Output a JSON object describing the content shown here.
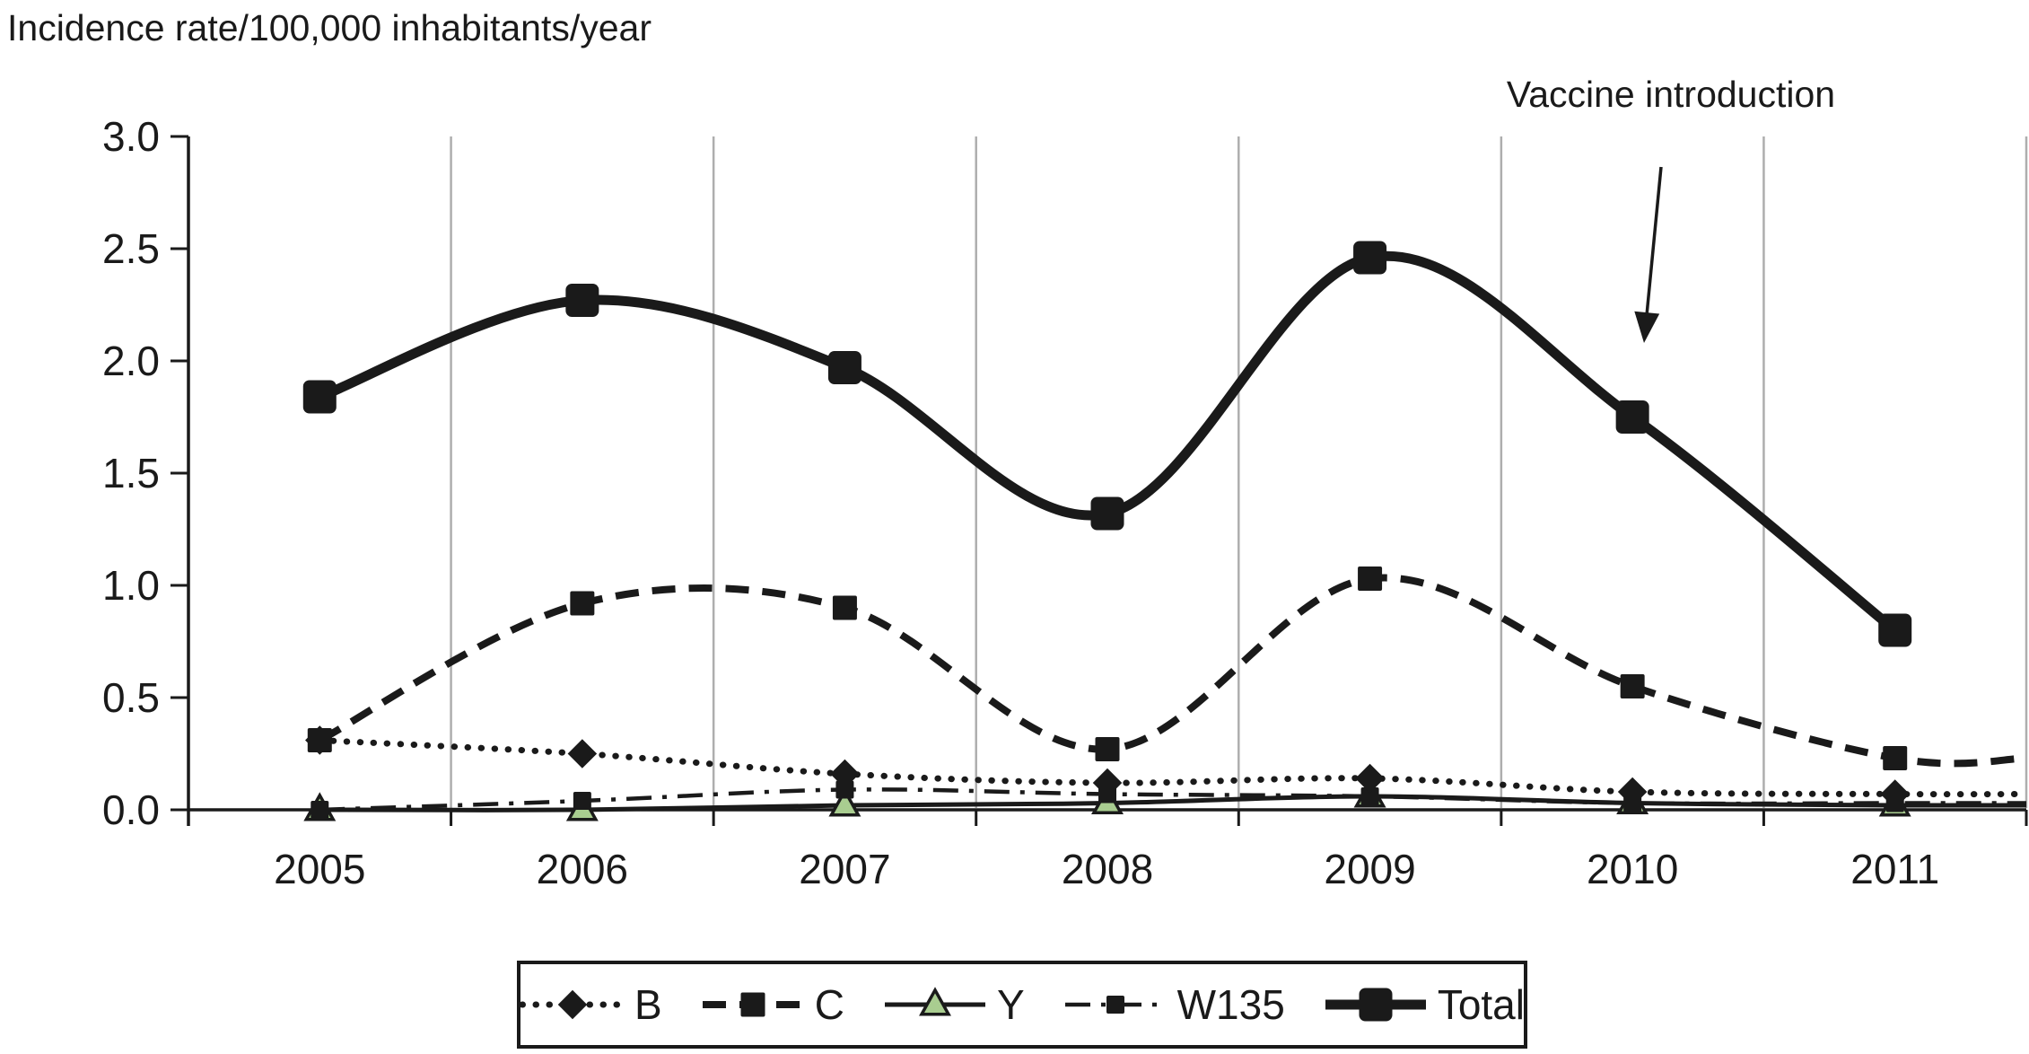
{
  "title": "Incidence rate/100,000 inhabitants/year",
  "annotation": {
    "text": "Vaccine introduction"
  },
  "colors": {
    "ink": "#1a1a1a",
    "grid": "#aeaeae",
    "triangle_fill": "#a9cd90",
    "background": "#ffffff"
  },
  "chart_data": {
    "type": "line",
    "title": "Incidence rate/100,000 inhabitants/year",
    "x": [
      "2005",
      "2006",
      "2007",
      "2008",
      "2009",
      "2010",
      "2011"
    ],
    "xlabel": "",
    "ylabel": "Incidence rate/100,000 inhabitants/year",
    "ylim": [
      0.0,
      3.0
    ],
    "ytick_labels": [
      "0.0",
      "0.5",
      "1.0",
      "1.5",
      "2.0",
      "2.5",
      "3.0"
    ],
    "grid": "vertical lines at category boundaries",
    "legend_position": "bottom",
    "annotations": [
      "Vaccine introduction"
    ],
    "series": [
      {
        "name": "B",
        "line": "dotted",
        "marker": "diamond",
        "values": [
          0.31,
          0.25,
          0.16,
          0.12,
          0.14,
          0.08,
          0.07
        ]
      },
      {
        "name": "C",
        "line": "dashed",
        "marker": "square",
        "values": [
          0.31,
          0.92,
          0.9,
          0.27,
          1.03,
          0.55,
          0.23
        ]
      },
      {
        "name": "Y",
        "line": "solid",
        "marker": "triangle",
        "values": [
          0.0,
          0.0,
          0.02,
          0.03,
          0.06,
          0.03,
          0.02
        ]
      },
      {
        "name": "W135",
        "line": "dashdot",
        "marker": "square-small",
        "values": [
          0.0,
          0.04,
          0.09,
          0.07,
          0.06,
          0.03,
          0.03
        ]
      },
      {
        "name": "Total",
        "line": "solid-thick",
        "marker": "square-large",
        "values": [
          1.84,
          2.27,
          1.97,
          1.32,
          2.46,
          1.75,
          0.8
        ]
      }
    ]
  }
}
